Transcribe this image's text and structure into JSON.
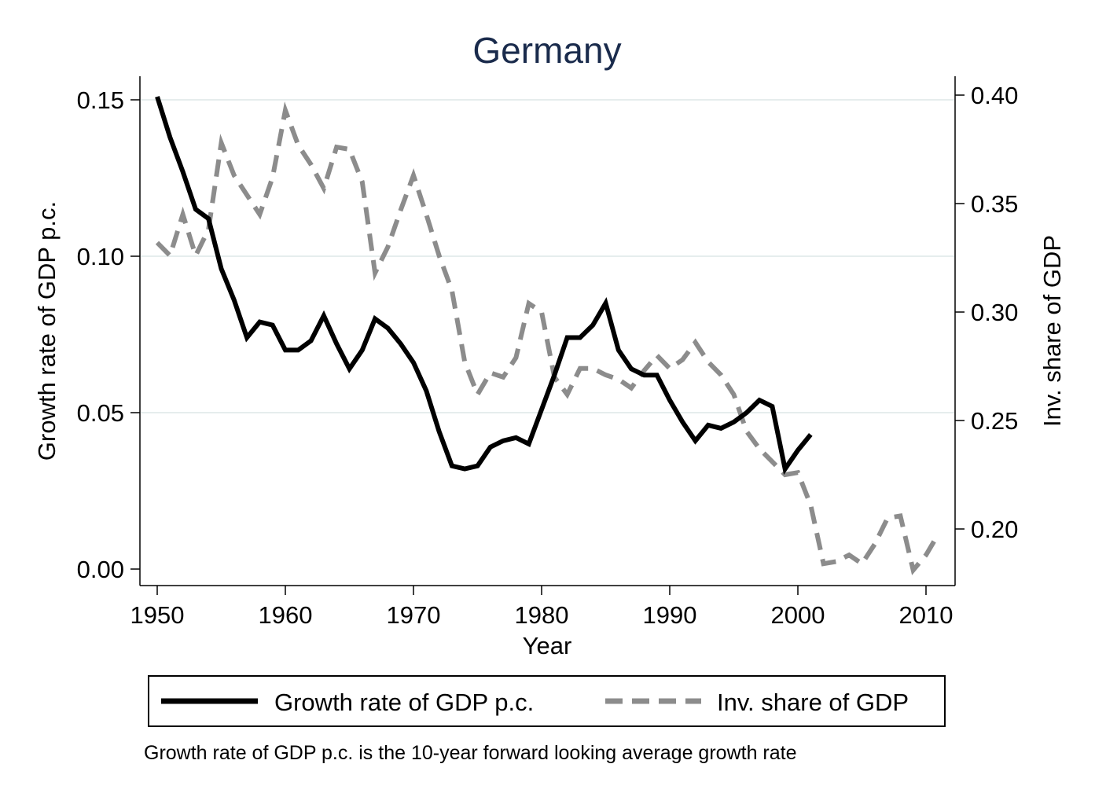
{
  "chart_data": {
    "type": "line",
    "title": "Germany",
    "xlabel": "Year",
    "ylabel_left": "Growth rate of GDP p.c.",
    "ylabel_right": "Inv. share of GDP",
    "xlim": [
      1950,
      2011
    ],
    "ylim_left": [
      0.0,
      0.15
    ],
    "ylim_right": [
      0.2,
      0.4
    ],
    "x_ticks": [
      "1950",
      "1960",
      "1970",
      "1980",
      "1990",
      "2000",
      "2010"
    ],
    "y_ticks_left": [
      "0.00",
      "0.05",
      "0.10",
      "0.15"
    ],
    "y_ticks_right": [
      "0.20",
      "0.25",
      "0.30",
      "0.35",
      "0.40"
    ],
    "grid": "horizontal",
    "legend_position": "bottom",
    "colors": {
      "growth": "#000000",
      "invest": "#8c8c8c",
      "grid": "#e6eded",
      "title": "#1a2b4c"
    },
    "series": [
      {
        "name": "Growth rate of GDP p.c.",
        "axis": "left",
        "style": "solid",
        "x": [
          1950,
          1951,
          1952,
          1953,
          1954,
          1955,
          1956,
          1957,
          1958,
          1959,
          1960,
          1961,
          1962,
          1963,
          1964,
          1965,
          1966,
          1967,
          1968,
          1969,
          1970,
          1971,
          1972,
          1973,
          1974,
          1975,
          1976,
          1977,
          1978,
          1979,
          1980,
          1981,
          1982,
          1983,
          1984,
          1985,
          1986,
          1987,
          1988,
          1989,
          1990,
          1991,
          1992,
          1993,
          1994,
          1995,
          1996,
          1997,
          1998,
          1999,
          2000,
          2001
        ],
        "values": [
          0.151,
          0.138,
          0.127,
          0.115,
          0.112,
          0.096,
          0.086,
          0.074,
          0.079,
          0.078,
          0.07,
          0.07,
          0.073,
          0.081,
          0.072,
          0.064,
          0.07,
          0.08,
          0.077,
          0.072,
          0.066,
          0.057,
          0.044,
          0.033,
          0.032,
          0.033,
          0.039,
          0.041,
          0.042,
          0.04,
          0.051,
          0.062,
          0.074,
          0.074,
          0.078,
          0.085,
          0.07,
          0.064,
          0.062,
          0.062,
          0.054,
          0.047,
          0.041,
          0.046,
          0.045,
          0.047,
          0.05,
          0.054,
          0.052,
          0.032,
          0.038,
          0.043
        ]
      },
      {
        "name": "Inv. share of GDP",
        "axis": "right",
        "style": "dashed",
        "x": [
          1950,
          1951,
          1952,
          1953,
          1954,
          1955,
          1956,
          1957,
          1958,
          1959,
          1960,
          1961,
          1962,
          1963,
          1964,
          1965,
          1966,
          1967,
          1968,
          1969,
          1970,
          1971,
          1972,
          1973,
          1974,
          1975,
          1976,
          1977,
          1978,
          1979,
          1980,
          1981,
          1982,
          1983,
          1984,
          1985,
          1986,
          1987,
          1988,
          1989,
          1990,
          1991,
          1992,
          1993,
          1994,
          1995,
          1996,
          1997,
          1998,
          1999,
          2000,
          2001,
          2002,
          2003,
          2004,
          2005,
          2006,
          2007,
          2008,
          2009,
          2010,
          2011
        ],
        "values": [
          0.332,
          0.326,
          0.345,
          0.326,
          0.338,
          0.378,
          0.363,
          0.354,
          0.345,
          0.362,
          0.393,
          0.377,
          0.368,
          0.357,
          0.376,
          0.375,
          0.36,
          0.318,
          0.33,
          0.347,
          0.363,
          0.345,
          0.326,
          0.31,
          0.277,
          0.262,
          0.272,
          0.27,
          0.279,
          0.304,
          0.3,
          0.27,
          0.262,
          0.274,
          0.274,
          0.271,
          0.269,
          0.265,
          0.273,
          0.28,
          0.274,
          0.278,
          0.286,
          0.277,
          0.271,
          0.262,
          0.245,
          0.237,
          0.231,
          0.225,
          0.226,
          0.211,
          0.184,
          0.185,
          0.188,
          0.184,
          0.193,
          0.205,
          0.206,
          0.181,
          0.188,
          0.198
        ]
      }
    ],
    "note": "Growth rate of GDP p.c. is the 10-year forward looking average growth rate"
  }
}
